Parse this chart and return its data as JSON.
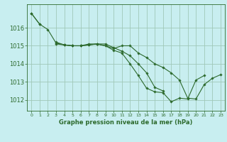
{
  "background_color": "#c8eef0",
  "grid_color": "#a0c8b8",
  "line_color": "#2d6a2d",
  "title": "Graphe pression niveau de la mer (hPa)",
  "xlim": [
    -0.5,
    23.5
  ],
  "ylim": [
    1011.4,
    1017.3
  ],
  "yticks": [
    1012,
    1013,
    1014,
    1015,
    1016
  ],
  "xticks": [
    0,
    1,
    2,
    3,
    4,
    5,
    6,
    7,
    8,
    9,
    10,
    11,
    12,
    13,
    14,
    15,
    16,
    17,
    18,
    19,
    20,
    21,
    22,
    23
  ],
  "series": [
    [
      0,
      1016.8,
      1,
      1016.2
    ],
    [
      3,
      1015.1,
      4,
      1015.05,
      5,
      1015.0,
      6,
      1015.0,
      7,
      1015.1,
      8,
      1015.1,
      9,
      1015.1,
      10,
      1014.9,
      11,
      1014.7,
      12,
      1014.45,
      13,
      1014.0,
      14,
      1013.5,
      15,
      1012.7,
      16,
      1012.5
    ],
    [
      3,
      1015.2,
      4,
      1015.05,
      5,
      1015.0,
      6,
      1015.0,
      7,
      1015.05,
      8,
      1015.1,
      9,
      1015.0,
      10,
      1014.75,
      11,
      1014.6,
      12,
      1014.0,
      13,
      1013.35,
      14,
      1012.65,
      15,
      1012.45,
      16,
      1012.4,
      17,
      1011.9,
      18,
      1012.1,
      19,
      1012.05,
      20,
      1013.1,
      21,
      1013.35
    ],
    [
      0,
      1016.8,
      1,
      1016.2,
      2,
      1015.9,
      3,
      1015.15,
      4,
      1015.05,
      5,
      1015.0,
      6,
      1015.0,
      7,
      1015.05,
      8,
      1015.1,
      9,
      1015.0,
      10,
      1014.85,
      11,
      1015.0,
      12,
      1015.0,
      13,
      1014.6,
      14,
      1014.35,
      15,
      1014.0,
      16,
      1013.8,
      17,
      1013.5,
      18,
      1013.1,
      19,
      1012.1,
      20,
      1012.05,
      21,
      1012.85,
      22,
      1013.2,
      23,
      1013.4
    ]
  ]
}
